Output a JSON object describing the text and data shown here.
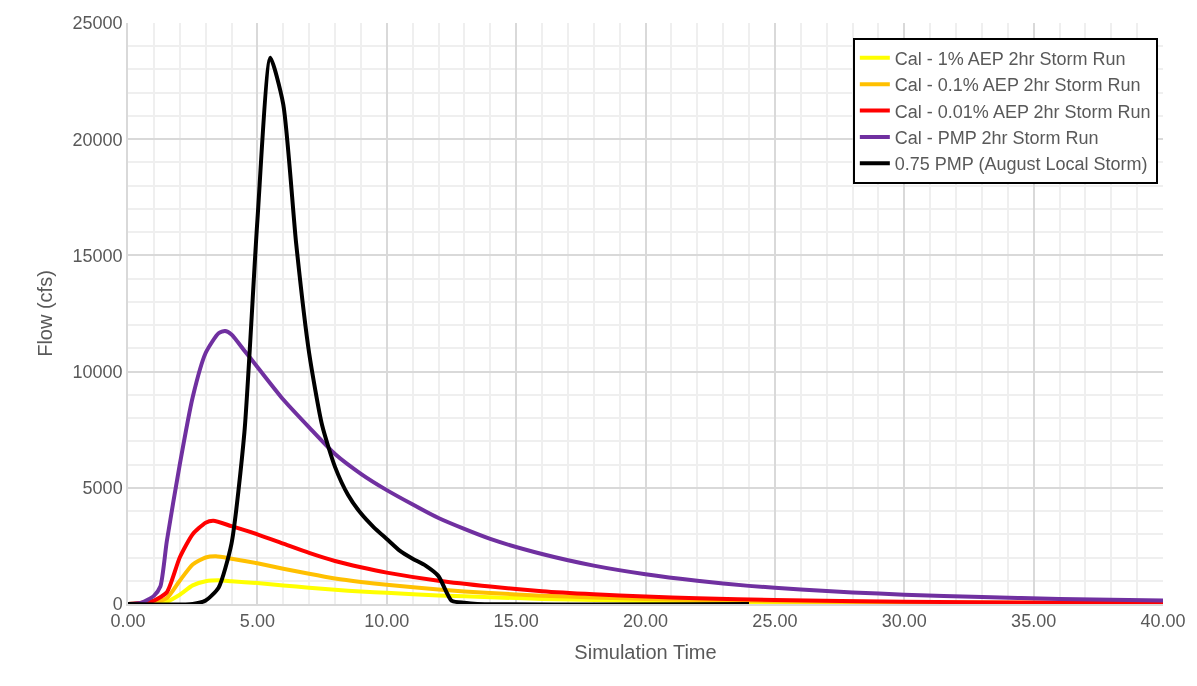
{
  "chart_data": {
    "type": "line",
    "xlabel": "Simulation Time",
    "ylabel": "Flow (cfs)",
    "xlim": [
      0,
      40
    ],
    "xticks": [
      {
        "value": 0,
        "label": "0.00"
      },
      {
        "value": 5,
        "label": "5.00"
      },
      {
        "value": 10,
        "label": "10.00"
      },
      {
        "value": 15,
        "label": "15.00"
      },
      {
        "value": 20,
        "label": "20.00"
      },
      {
        "value": 25,
        "label": "25.00"
      },
      {
        "value": 30,
        "label": "30.00"
      },
      {
        "value": 35,
        "label": "35.00"
      },
      {
        "value": 40,
        "label": "40.00"
      }
    ],
    "ylim": [
      0,
      25000
    ],
    "yticks": [
      0,
      5000,
      10000,
      15000,
      20000,
      25000
    ],
    "grid": true,
    "legend": "top right",
    "marker": "none",
    "line_style": "solid",
    "series": [
      {
        "name": "Cal - 1% AEP 2hr Storm Run",
        "color": "#ffff00",
        "x": [
          0,
          1,
          1.5,
          2,
          2.5,
          3,
          3.5,
          4,
          5,
          6,
          7,
          8,
          9,
          10,
          12,
          14,
          16,
          18,
          20,
          25,
          30
        ],
        "values": [
          0,
          30,
          100,
          400,
          800,
          980,
          1020,
          980,
          900,
          800,
          700,
          610,
          540,
          480,
          370,
          290,
          220,
          170,
          130,
          70,
          50
        ]
      },
      {
        "name": "Cal - 0.1% AEP 2hr Storm Run",
        "color": "#ffc000",
        "x": [
          0,
          1,
          1.5,
          2,
          2.5,
          3,
          3.4,
          4,
          5,
          6,
          7,
          8,
          9,
          10,
          12,
          14,
          16,
          18,
          20,
          25,
          30,
          35,
          40
        ],
        "values": [
          0,
          80,
          250,
          1000,
          1700,
          2000,
          2050,
          1950,
          1750,
          1520,
          1300,
          1100,
          950,
          830,
          620,
          470,
          360,
          280,
          220,
          120,
          70,
          50,
          0
        ]
      },
      {
        "name": "Cal - 0.01% AEP 2hr Storm Run",
        "color": "#ff0000",
        "x": [
          0,
          1,
          1.5,
          2,
          2.5,
          3,
          3.3,
          4,
          5,
          6,
          7,
          8,
          9,
          10,
          12,
          14,
          16,
          18,
          20,
          22,
          25,
          30,
          35,
          40
        ],
        "values": [
          0,
          150,
          500,
          2000,
          3000,
          3500,
          3580,
          3350,
          3000,
          2600,
          2200,
          1850,
          1580,
          1350,
          1000,
          750,
          550,
          420,
          320,
          250,
          170,
          100,
          60,
          40
        ]
      },
      {
        "name": "Cal - PMP 2hr Storm Run",
        "color": "#7030a0",
        "x": [
          0,
          0.5,
          1,
          1.25,
          1.5,
          2,
          2.5,
          3,
          3.5,
          3.75,
          4,
          4.5,
          5,
          6,
          7,
          8,
          9,
          10,
          12,
          14,
          16,
          18,
          20,
          22,
          24,
          26,
          28,
          30,
          33,
          36,
          40
        ],
        "values": [
          0,
          50,
          350,
          750,
          2700,
          6000,
          8900,
          10800,
          11650,
          11750,
          11600,
          10900,
          10200,
          8800,
          7600,
          6450,
          5600,
          4900,
          3700,
          2800,
          2150,
          1650,
          1280,
          1000,
          780,
          620,
          500,
          400,
          300,
          220,
          150
        ]
      },
      {
        "name": "0.75 PMP (August Local Storm)",
        "color": "#000000",
        "x": [
          0,
          2.5,
          3,
          3.5,
          4,
          4.5,
          5,
          5.5,
          6,
          6.5,
          7,
          7.5,
          8,
          8.5,
          9,
          9.5,
          10,
          10.5,
          11,
          11.5,
          12,
          12.5,
          13,
          13.5,
          24
        ],
        "values": [
          0,
          0,
          150,
          700,
          2600,
          7400,
          16500,
          23500,
          21500,
          15500,
          10800,
          7700,
          5900,
          4700,
          3900,
          3300,
          2800,
          2300,
          1950,
          1650,
          1200,
          150,
          50,
          0,
          0
        ]
      }
    ]
  }
}
